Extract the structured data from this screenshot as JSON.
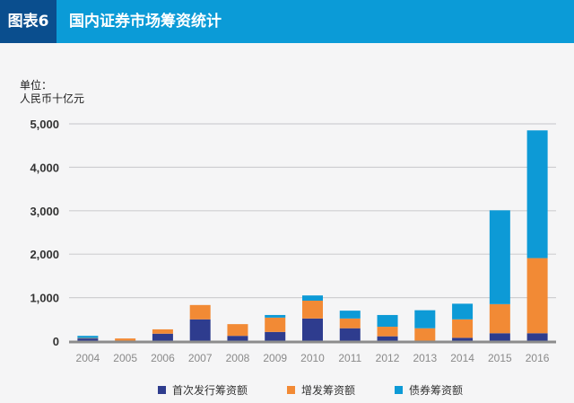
{
  "header": {
    "tag": "图表6",
    "title": "国内证券市场筹资统计"
  },
  "chart_data": {
    "type": "bar",
    "stacked": true,
    "title": "国内证券市场筹资统计",
    "ylabel_line1": "单位：",
    "ylabel_line2": "人民币十亿元",
    "categories": [
      "2004",
      "2005",
      "2006",
      "2007",
      "2008",
      "2009",
      "2010",
      "2011",
      "2012",
      "2013",
      "2014",
      "2015",
      "2016"
    ],
    "ylim": [
      0,
      5000
    ],
    "yticks": [
      0,
      1000,
      2000,
      3000,
      4000,
      5000
    ],
    "ytick_labels": [
      "0",
      "1,000",
      "2,000",
      "3,000",
      "4,000",
      "5,000"
    ],
    "grid": true,
    "legend_position": "bottom",
    "series": [
      {
        "name": "首次发行筹资额",
        "color": "#2e3c8e",
        "values": [
          60,
          5,
          170,
          500,
          120,
          210,
          520,
          295,
          110,
          0,
          75,
          180,
          180
        ]
      },
      {
        "name": "增发筹资额",
        "color": "#f28a35",
        "values": [
          10,
          55,
          100,
          330,
          270,
          330,
          410,
          225,
          220,
          295,
          425,
          670,
          1730
        ]
      },
      {
        "name": "债券筹资额",
        "color": "#0d9ad6",
        "values": [
          50,
          0,
          0,
          0,
          0,
          60,
          120,
          180,
          270,
          415,
          360,
          2160,
          2940
        ]
      }
    ]
  }
}
